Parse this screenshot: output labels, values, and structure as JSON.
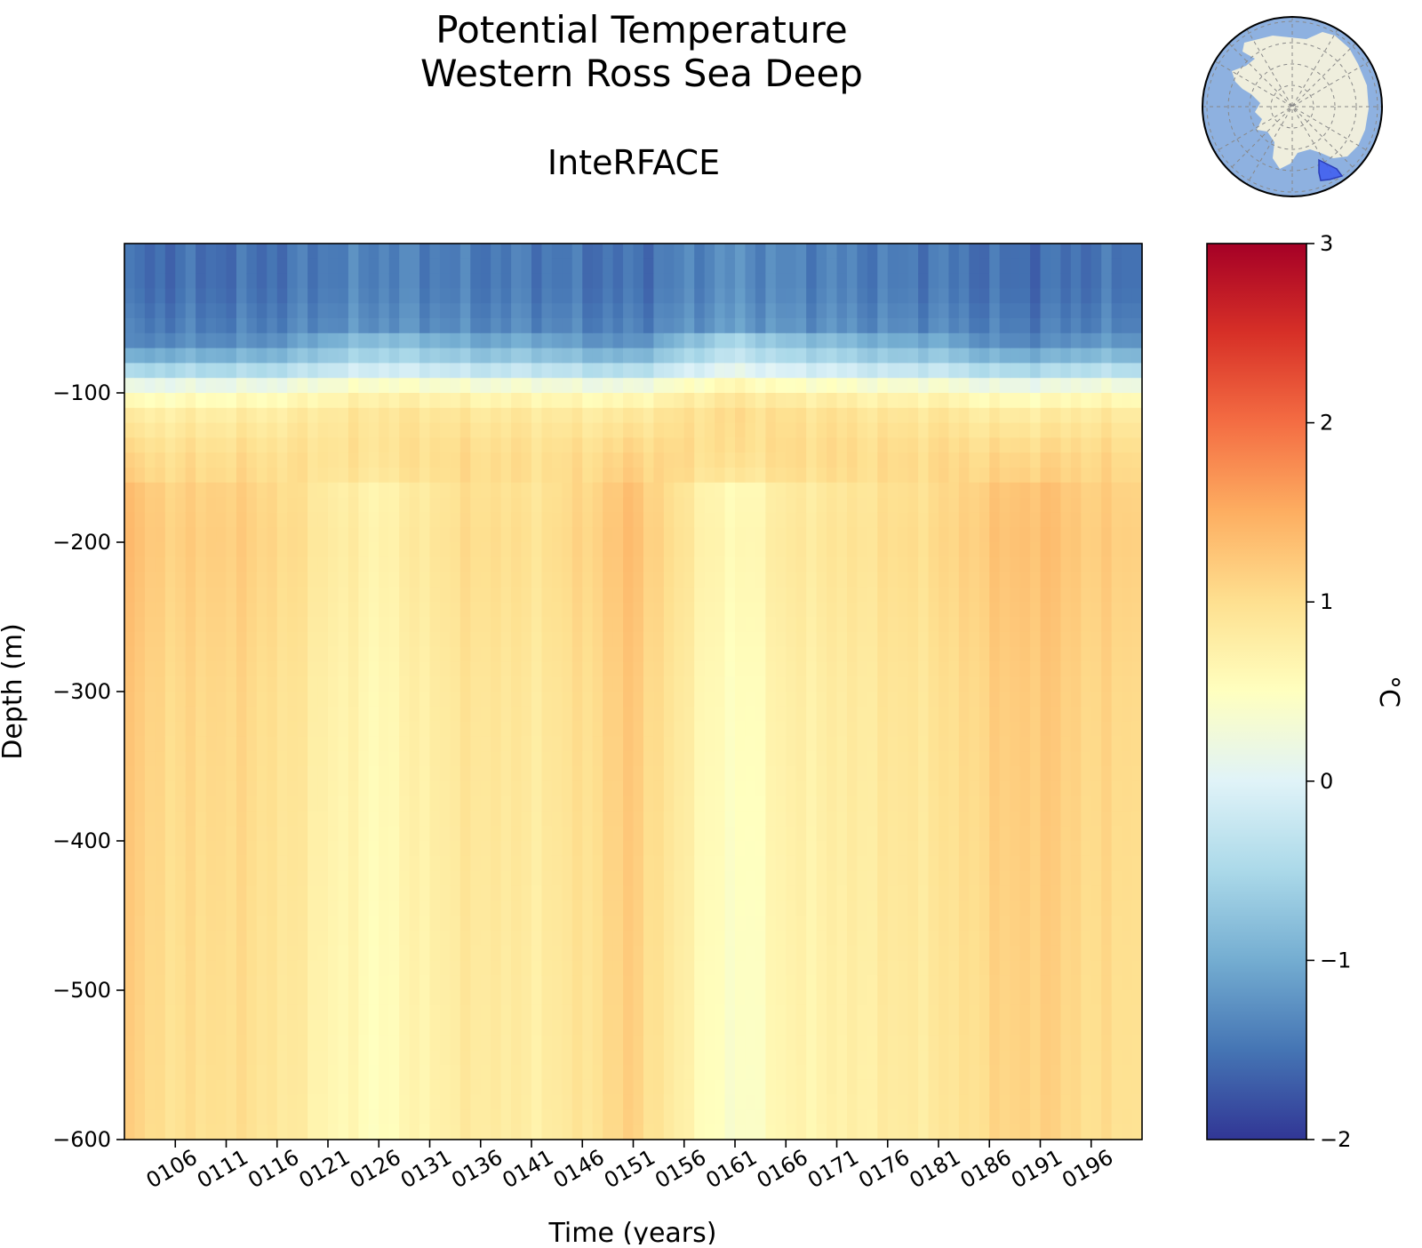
{
  "chart_data": {
    "type": "heatmap",
    "title": [
      "Potential Temperature",
      "Western Ross Sea Deep"
    ],
    "subtitle": "InteRFACE",
    "xlabel": "Time (years)",
    "ylabel": "Depth (m)",
    "xlim": [
      101,
      201
    ],
    "ylim": [
      -600,
      0
    ],
    "x_ticks": [
      106,
      111,
      116,
      121,
      126,
      131,
      136,
      141,
      146,
      151,
      156,
      161,
      166,
      171,
      176,
      181,
      186,
      191,
      196
    ],
    "x_tick_labels": [
      "0106",
      "0111",
      "0116",
      "0121",
      "0126",
      "0131",
      "0136",
      "0141",
      "0146",
      "0151",
      "0156",
      "0161",
      "0166",
      "0171",
      "0176",
      "0181",
      "0186",
      "0191",
      "0196"
    ],
    "y_ticks": [
      -100,
      -200,
      -300,
      -400,
      -500,
      -600
    ],
    "y_tick_labels": [
      "−100",
      "−200",
      "−300",
      "−400",
      "−500",
      "−600"
    ],
    "colorbar": {
      "label": "°C",
      "range": [
        -2,
        3
      ],
      "ticks": [
        3,
        2,
        1,
        0,
        -1,
        -2
      ],
      "tick_labels": [
        "3",
        "2",
        "1",
        "0",
        "−1",
        "−2"
      ],
      "colormap": "RdYlBu_r",
      "colors": [
        "#313695",
        "#4575b4",
        "#74add1",
        "#abd9e9",
        "#e0f3f8",
        "#ffffbf",
        "#fee090",
        "#fdae61",
        "#f46d43",
        "#d73027",
        "#a50026"
      ]
    },
    "profile_depths": [
      0,
      -30,
      -60,
      -80,
      -95,
      -110,
      -140,
      -200,
      -300,
      -450,
      -600
    ],
    "profile_mean": [
      -1.5,
      -1.5,
      -1.35,
      -0.7,
      0.2,
      0.75,
      0.95,
      1.0,
      0.9,
      0.85,
      0.8
    ],
    "year_anomaly_by_5yr": [
      {
        "year": 101,
        "surface_layer": -0.2,
        "interior": 0.35
      },
      {
        "year": 106,
        "surface_layer": -0.1,
        "interior": 0.15
      },
      {
        "year": 111,
        "surface_layer": -0.1,
        "interior": 0.2
      },
      {
        "year": 116,
        "surface_layer": -0.05,
        "interior": 0.1
      },
      {
        "year": 121,
        "surface_layer": 0.2,
        "interior": -0.15
      },
      {
        "year": 126,
        "surface_layer": 0.35,
        "interior": -0.3
      },
      {
        "year": 131,
        "surface_layer": 0.25,
        "interior": -0.1
      },
      {
        "year": 136,
        "surface_layer": 0.1,
        "interior": 0.05
      },
      {
        "year": 141,
        "surface_layer": 0.15,
        "interior": -0.05
      },
      {
        "year": 146,
        "surface_layer": 0.0,
        "interior": 0.1
      },
      {
        "year": 151,
        "surface_layer": -0.1,
        "interior": 0.35
      },
      {
        "year": 156,
        "surface_layer": 0.3,
        "interior": -0.1
      },
      {
        "year": 161,
        "surface_layer": 0.6,
        "interior": -0.45
      },
      {
        "year": 166,
        "surface_layer": 0.35,
        "interior": -0.15
      },
      {
        "year": 171,
        "surface_layer": 0.3,
        "interior": -0.1
      },
      {
        "year": 176,
        "surface_layer": 0.15,
        "interior": 0.0
      },
      {
        "year": 181,
        "surface_layer": 0.15,
        "interior": 0.05
      },
      {
        "year": 186,
        "surface_layer": -0.1,
        "interior": 0.25
      },
      {
        "year": 191,
        "surface_layer": -0.15,
        "interior": 0.35
      },
      {
        "year": 196,
        "surface_layer": 0.0,
        "interior": 0.2
      },
      {
        "year": 201,
        "surface_layer": -0.05,
        "interior": 0.15
      }
    ],
    "inset_map": {
      "projection": "south-polar-stereographic",
      "highlighted_region": "Western Ross Sea",
      "ocean_color": "#8eb1e0",
      "land_color": "#efeedd",
      "region_color": "#3d5cf0"
    }
  }
}
